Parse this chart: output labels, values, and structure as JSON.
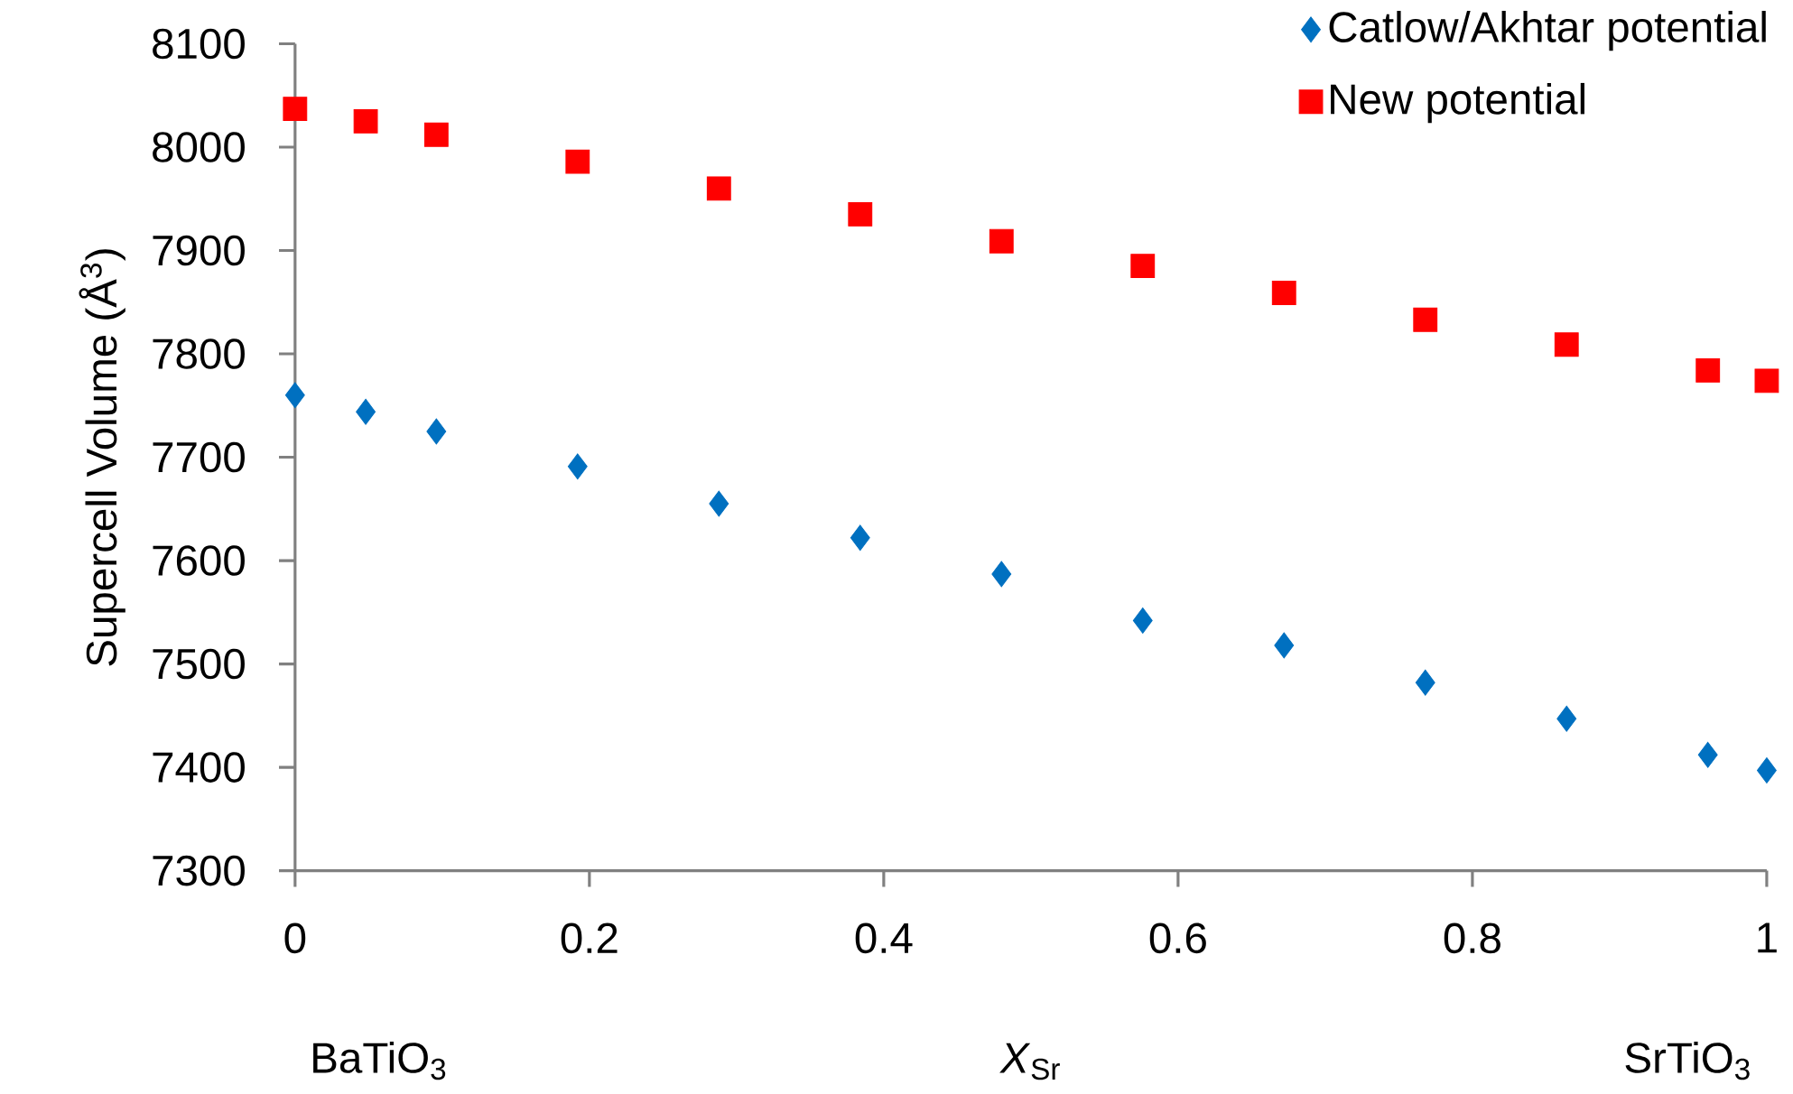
{
  "chart_data": {
    "type": "scatter",
    "ylabel": "Supercell Volume (Å$^{3}$)",
    "xlabel": "*X*$_{Sr}$",
    "annotations": [
      "BaTiO$_{3}$",
      "SrTiO$_{3}$"
    ],
    "series": [
      {
        "name": "Catlow/Akhtar potential",
        "color": "#0070c0",
        "marker": "diamond",
        "x": [
          0,
          0.048,
          0.096,
          0.192,
          0.288,
          0.384,
          0.48,
          0.576,
          0.672,
          0.768,
          0.864,
          0.96,
          1
        ],
        "values": [
          7760,
          7744,
          7725,
          7691,
          7655,
          7622,
          7587,
          7542,
          7518,
          7482,
          7447,
          7412,
          7397
        ]
      },
      {
        "name": "New potential",
        "color": "#ff0000",
        "marker": "square",
        "x": [
          0,
          0.048,
          0.096,
          0.192,
          0.288,
          0.384,
          0.48,
          0.576,
          0.672,
          0.768,
          0.864,
          0.96,
          1
        ],
        "values": [
          8037,
          8025,
          8012,
          7986,
          7960,
          7935,
          7909,
          7885,
          7859,
          7833,
          7809,
          7784,
          7774
        ]
      }
    ],
    "xlim": [
      0,
      1
    ],
    "ylim": [
      7300,
      8100
    ],
    "xticks": [
      0,
      0.2,
      0.4,
      0.6,
      0.8,
      1
    ],
    "yticks": [
      7300,
      7400,
      7500,
      7600,
      7700,
      7800,
      7900,
      8000,
      8100
    ],
    "grid": false,
    "legend": "top right"
  }
}
